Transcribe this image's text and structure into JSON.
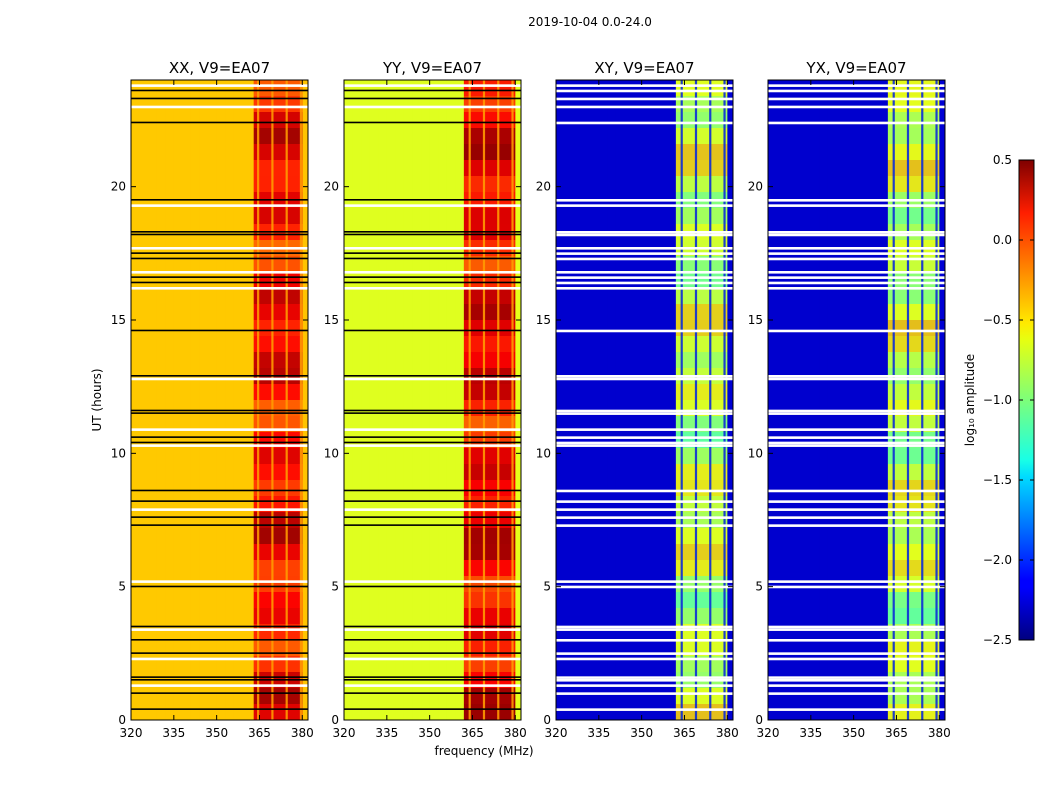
{
  "suptitle": "2019-10-04 0.0-24.0",
  "colormap": "jet",
  "chart_data": {
    "type": "heatmap",
    "xlabel": "frequency (MHz)",
    "ylabel": "UT (hours)",
    "xlim": [
      320,
      382
    ],
    "ylim": [
      0,
      24
    ],
    "xticks": [
      320,
      335,
      350,
      365,
      380
    ],
    "yticks": [
      0,
      5,
      10,
      15,
      20
    ],
    "clim": [
      -2.5,
      0.5
    ],
    "flagged_ut_hours": [
      0.4,
      1.0,
      1.3,
      1.5,
      1.6,
      2.3,
      2.5,
      3.0,
      3.4,
      3.5,
      5.0,
      5.2,
      7.3,
      7.6,
      7.9,
      8.2,
      8.6,
      10.3,
      10.4,
      10.6,
      10.9,
      11.5,
      11.6,
      12.8,
      12.9,
      14.6,
      16.2,
      16.4,
      16.6,
      16.8,
      17.3,
      17.5,
      17.7,
      18.2,
      18.3,
      19.3,
      19.5,
      22.4,
      23.0,
      23.3,
      23.6,
      23.8
    ],
    "panels": [
      {
        "title": "XX, V9=EA07",
        "baseline_level": -0.45,
        "band_level": 0.1,
        "band_mhz": [
          363,
          380
        ],
        "band_columns_mhz": [
          364.5,
          369.5,
          374.5,
          379.5
        ]
      },
      {
        "title": "YY, V9=EA07",
        "baseline_level": -0.7,
        "band_level": 0.15,
        "band_mhz": [
          362,
          380
        ],
        "band_columns_mhz": [
          364,
          369,
          374,
          379
        ]
      },
      {
        "title": "XY, V9=EA07",
        "baseline_level": -2.25,
        "band_level": -0.8,
        "band_mhz": [
          362,
          380
        ],
        "band_columns_mhz": [
          364,
          369,
          374,
          379
        ]
      },
      {
        "title": "YX, V9=EA07",
        "baseline_level": -2.25,
        "band_level": -0.8,
        "band_mhz": [
          362,
          380
        ],
        "band_columns_mhz": [
          364,
          369,
          374,
          379
        ]
      }
    ],
    "colorbar": {
      "label": "log₁₀ amplitude",
      "ticks": [
        "0.5",
        "0.0",
        "−0.5",
        "−1.0",
        "−1.5",
        "−2.0",
        "−2.5"
      ],
      "tick_values": [
        0.5,
        0.0,
        -0.5,
        -1.0,
        -1.5,
        -2.0,
        -2.5
      ]
    }
  }
}
